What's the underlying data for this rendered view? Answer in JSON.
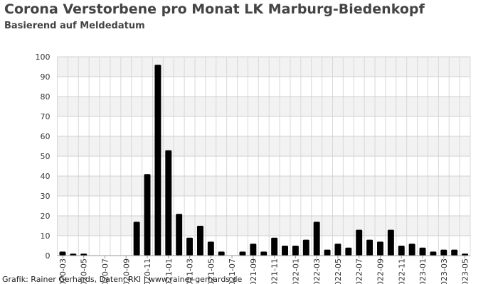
{
  "chart_data": {
    "type": "bar",
    "title": "Corona Verstorbene pro Monat LK Marburg-Biedenkopf",
    "subtitle": "Basierend auf Meldedatum",
    "footer": "Grafik: Rainer Gerhards, Daten: RKI | www.rainer-gerhards.de",
    "categories": [
      "2020-03",
      null,
      "2020-05",
      null,
      "2020-07",
      null,
      "2020-09",
      null,
      "2020-11",
      null,
      "2021-01",
      null,
      "2021-03",
      null,
      "2021-05",
      null,
      "2021-07",
      null,
      "2021-09",
      null,
      "2021-11",
      null,
      "2022-01",
      null,
      "2022-03",
      null,
      "2022-05",
      null,
      "2022-07",
      null,
      "2022-09",
      null,
      "2022-11",
      null,
      "2023-01",
      null,
      "2023-03",
      null,
      "2023-05"
    ],
    "values": [
      2,
      1,
      1,
      0,
      0,
      0,
      0,
      17,
      41,
      96,
      53,
      21,
      9,
      15,
      7,
      2,
      0,
      2,
      6,
      2,
      9,
      5,
      5,
      8,
      17,
      3,
      6,
      4,
      13,
      8,
      7,
      13,
      5,
      6,
      4,
      2,
      3,
      3,
      1
    ],
    "color": "#000000",
    "ylim": [
      0,
      100
    ],
    "yticks": [
      0,
      10,
      20,
      30,
      40,
      50,
      60,
      70,
      80,
      90,
      100
    ],
    "grid": true
  }
}
